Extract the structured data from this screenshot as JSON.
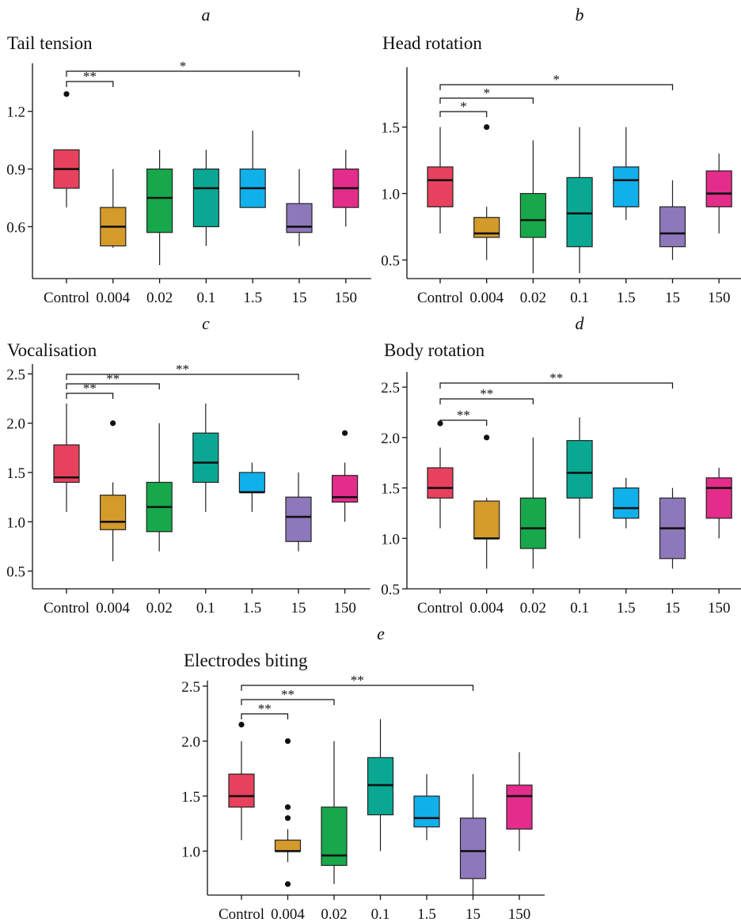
{
  "category_colors": [
    "#e8415e",
    "#d49a2a",
    "#16a84a",
    "#0aa893",
    "#10b1ea",
    "#8d78bb",
    "#e42d8a"
  ],
  "chart_data": [
    {
      "letter": "a",
      "type": "box",
      "title": "Tail tension",
      "categories": [
        "Control",
        "0.004",
        "0.02",
        "0.1",
        "1.5",
        "15",
        "150"
      ],
      "ylim": [
        0.33,
        1.45
      ],
      "yticks": [
        {
          "v": 0.6,
          "label": "0.6"
        },
        {
          "v": 0.9,
          "label": "0.9"
        },
        {
          "v": 1.2,
          "label": "1.2"
        }
      ],
      "boxes": [
        {
          "lo": 0.7,
          "q1": 0.8,
          "med": 0.9,
          "q3": 1.0,
          "hi": 1.0,
          "outliers": [
            1.29
          ]
        },
        {
          "lo": 0.49,
          "q1": 0.5,
          "med": 0.6,
          "q3": 0.7,
          "hi": 0.9,
          "outliers": []
        },
        {
          "lo": 0.4,
          "q1": 0.57,
          "med": 0.75,
          "q3": 0.9,
          "hi": 1.0,
          "outliers": []
        },
        {
          "lo": 0.5,
          "q1": 0.6,
          "med": 0.8,
          "q3": 0.9,
          "hi": 1.0,
          "outliers": []
        },
        {
          "lo": 0.7,
          "q1": 0.7,
          "med": 0.8,
          "q3": 0.9,
          "hi": 1.1,
          "outliers": []
        },
        {
          "lo": 0.5,
          "q1": 0.57,
          "med": 0.6,
          "q3": 0.72,
          "hi": 0.9,
          "outliers": []
        },
        {
          "lo": 0.6,
          "q1": 0.7,
          "med": 0.8,
          "q3": 0.9,
          "hi": 1.0,
          "outliers": []
        }
      ],
      "brackets": [
        {
          "to": 1,
          "label": "**"
        },
        {
          "to": 5,
          "label": "*"
        }
      ]
    },
    {
      "letter": "b",
      "type": "box",
      "title": "Head rotation",
      "categories": [
        "Control",
        "0.004",
        "0.02",
        "0.1",
        "1.5",
        "15",
        "150"
      ],
      "ylim": [
        0.36,
        1.95
      ],
      "yticks": [
        {
          "v": 0.5,
          "label": "0.5"
        },
        {
          "v": 1.0,
          "label": "1.0"
        },
        {
          "v": 1.5,
          "label": "1.5"
        }
      ],
      "boxes": [
        {
          "lo": 0.7,
          "q1": 0.9,
          "med": 1.1,
          "q3": 1.2,
          "hi": 1.5,
          "outliers": []
        },
        {
          "lo": 0.5,
          "q1": 0.67,
          "med": 0.7,
          "q3": 0.82,
          "hi": 0.9,
          "outliers": [
            1.5
          ]
        },
        {
          "lo": 0.4,
          "q1": 0.67,
          "med": 0.8,
          "q3": 1.0,
          "hi": 1.4,
          "outliers": []
        },
        {
          "lo": 0.4,
          "q1": 0.6,
          "med": 0.85,
          "q3": 1.12,
          "hi": 1.5,
          "outliers": []
        },
        {
          "lo": 0.8,
          "q1": 0.9,
          "med": 1.1,
          "q3": 1.2,
          "hi": 1.5,
          "outliers": []
        },
        {
          "lo": 0.5,
          "q1": 0.6,
          "med": 0.7,
          "q3": 0.9,
          "hi": 1.1,
          "outliers": []
        },
        {
          "lo": 0.7,
          "q1": 0.9,
          "med": 1.0,
          "q3": 1.17,
          "hi": 1.3,
          "outliers": []
        }
      ],
      "brackets": [
        {
          "to": 1,
          "label": "*"
        },
        {
          "to": 2,
          "label": "*"
        },
        {
          "to": 5,
          "label": "*"
        }
      ]
    },
    {
      "letter": "c",
      "type": "box",
      "title": "Vocalisation",
      "categories": [
        "Control",
        "0.004",
        "0.02",
        "0.1",
        "1.5",
        "15",
        "150"
      ],
      "ylim": [
        0.32,
        2.6
      ],
      "yticks": [
        {
          "v": 0.5,
          "label": "0.5"
        },
        {
          "v": 1.0,
          "label": "1.0"
        },
        {
          "v": 1.5,
          "label": "1.5"
        },
        {
          "v": 2.0,
          "label": "2.0"
        },
        {
          "v": 2.5,
          "label": "2.5"
        }
      ],
      "boxes": [
        {
          "lo": 1.1,
          "q1": 1.4,
          "med": 1.45,
          "q3": 1.78,
          "hi": 2.2,
          "outliers": []
        },
        {
          "lo": 0.6,
          "q1": 0.92,
          "med": 1.0,
          "q3": 1.27,
          "hi": 1.4,
          "outliers": [
            2.0
          ]
        },
        {
          "lo": 0.7,
          "q1": 0.9,
          "med": 1.15,
          "q3": 1.4,
          "hi": 2.0,
          "outliers": []
        },
        {
          "lo": 1.1,
          "q1": 1.4,
          "med": 1.6,
          "q3": 1.9,
          "hi": 2.2,
          "outliers": []
        },
        {
          "lo": 1.1,
          "q1": 1.3,
          "med": 1.3,
          "q3": 1.5,
          "hi": 1.6,
          "outliers": []
        },
        {
          "lo": 0.7,
          "q1": 0.8,
          "med": 1.05,
          "q3": 1.25,
          "hi": 1.5,
          "outliers": []
        },
        {
          "lo": 1.0,
          "q1": 1.2,
          "med": 1.25,
          "q3": 1.47,
          "hi": 1.6,
          "outliers": [
            1.9
          ]
        }
      ],
      "brackets": [
        {
          "to": 1,
          "label": "**"
        },
        {
          "to": 2,
          "label": "**"
        },
        {
          "to": 5,
          "label": "**"
        }
      ]
    },
    {
      "letter": "d",
      "type": "box",
      "title": "Body rotation",
      "categories": [
        "Control",
        "0.004",
        "0.02",
        "0.1",
        "1.5",
        "15",
        "150"
      ],
      "ylim": [
        0.5,
        2.65
      ],
      "yticks": [
        {
          "v": 0.5,
          "label": "0.5"
        },
        {
          "v": 1.0,
          "label": "1.0"
        },
        {
          "v": 1.5,
          "label": "1.5"
        },
        {
          "v": 2.0,
          "label": "2.0"
        },
        {
          "v": 2.5,
          "label": "2.5"
        }
      ],
      "boxes": [
        {
          "lo": 1.1,
          "q1": 1.4,
          "med": 1.5,
          "q3": 1.7,
          "hi": 1.9,
          "outliers": [
            2.14
          ]
        },
        {
          "lo": 0.7,
          "q1": 1.0,
          "med": 1.0,
          "q3": 1.37,
          "hi": 1.4,
          "outliers": [
            2.0
          ]
        },
        {
          "lo": 0.7,
          "q1": 0.9,
          "med": 1.1,
          "q3": 1.4,
          "hi": 2.0,
          "outliers": []
        },
        {
          "lo": 1.0,
          "q1": 1.4,
          "med": 1.65,
          "q3": 1.97,
          "hi": 2.2,
          "outliers": []
        },
        {
          "lo": 1.1,
          "q1": 1.2,
          "med": 1.3,
          "q3": 1.5,
          "hi": 1.6,
          "outliers": []
        },
        {
          "lo": 0.7,
          "q1": 0.8,
          "med": 1.1,
          "q3": 1.4,
          "hi": 1.5,
          "outliers": []
        },
        {
          "lo": 1.0,
          "q1": 1.2,
          "med": 1.5,
          "q3": 1.6,
          "hi": 1.7,
          "outliers": []
        }
      ],
      "brackets": [
        {
          "to": 1,
          "label": "**"
        },
        {
          "to": 2,
          "label": "**"
        },
        {
          "to": 5,
          "label": "**"
        }
      ]
    },
    {
      "letter": "e",
      "type": "box",
      "title": "Electrodes biting",
      "categories": [
        "Control",
        "0.004",
        "0.02",
        "0.1",
        "1.5",
        "15",
        "150"
      ],
      "ylim": [
        0.6,
        2.55
      ],
      "yticks": [
        {
          "v": 1.0,
          "label": "1.0"
        },
        {
          "v": 1.5,
          "label": "1.5"
        },
        {
          "v": 2.0,
          "label": "2.0"
        },
        {
          "v": 2.5,
          "label": "2.5"
        }
      ],
      "boxes": [
        {
          "lo": 1.1,
          "q1": 1.4,
          "med": 1.5,
          "q3": 1.7,
          "hi": 2.0,
          "outliers": [
            2.15
          ]
        },
        {
          "lo": 0.9,
          "q1": 1.0,
          "med": 1.0,
          "q3": 1.1,
          "hi": 1.2,
          "outliers": [
            0.7,
            1.3,
            1.4,
            2.0
          ]
        },
        {
          "lo": 0.7,
          "q1": 0.87,
          "med": 0.96,
          "q3": 1.4,
          "hi": 2.0,
          "outliers": []
        },
        {
          "lo": 1.0,
          "q1": 1.33,
          "med": 1.6,
          "q3": 1.85,
          "hi": 2.2,
          "outliers": []
        },
        {
          "lo": 1.1,
          "q1": 1.22,
          "med": 1.3,
          "q3": 1.5,
          "hi": 1.7,
          "outliers": []
        },
        {
          "lo": 0.6,
          "q1": 0.75,
          "med": 1.0,
          "q3": 1.3,
          "hi": 1.7,
          "outliers": []
        },
        {
          "lo": 1.0,
          "q1": 1.2,
          "med": 1.5,
          "q3": 1.6,
          "hi": 1.9,
          "outliers": []
        }
      ],
      "brackets": [
        {
          "to": 1,
          "label": "**"
        },
        {
          "to": 2,
          "label": "**"
        },
        {
          "to": 5,
          "label": "**"
        }
      ]
    }
  ]
}
